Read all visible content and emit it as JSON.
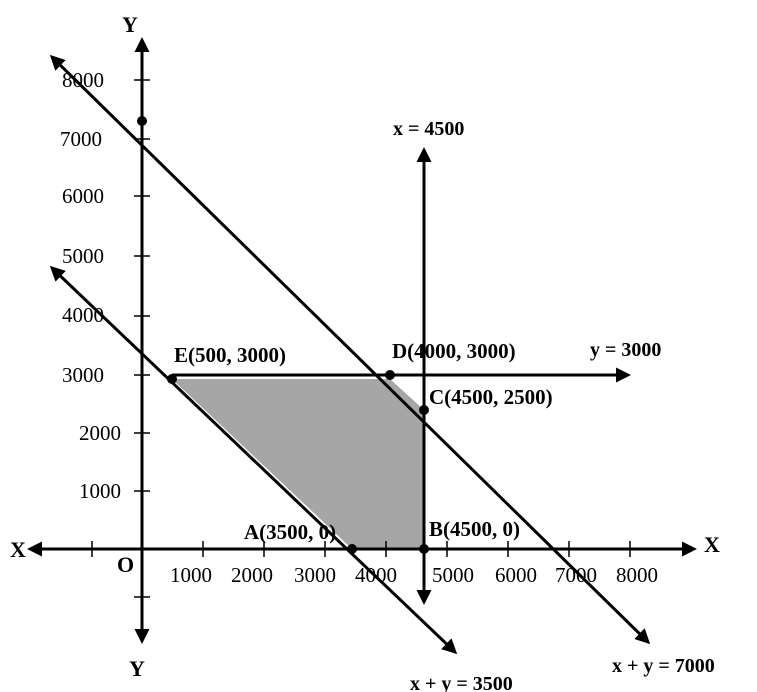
{
  "axes": {
    "x_pos_label": "X",
    "x_neg_label": "X",
    "y_pos_label": "Y",
    "y_neg_label": "Y",
    "origin_label": "O",
    "x_ticks": [
      "1000",
      "2000",
      "3000",
      "4000",
      "5000",
      "6000",
      "7000",
      "8000"
    ],
    "y_ticks": [
      "1000",
      "2000",
      "3000",
      "4000",
      "5000",
      "6000",
      "7000",
      "8000"
    ]
  },
  "lines": {
    "x_4500": "x = 4500",
    "y_3000": "y = 3000",
    "sum_7000": "x + y = 7000",
    "sum_3500": "x + y = 3500"
  },
  "points": {
    "A": "A(3500, 0)",
    "B": "B(4500, 0)",
    "C": "C(4500, 2500)",
    "D": "D(4000, 3000)",
    "E": "E(500, 3000)"
  },
  "colors": {
    "feasible_region": "#a6a6a6",
    "ink": "#000000"
  }
}
